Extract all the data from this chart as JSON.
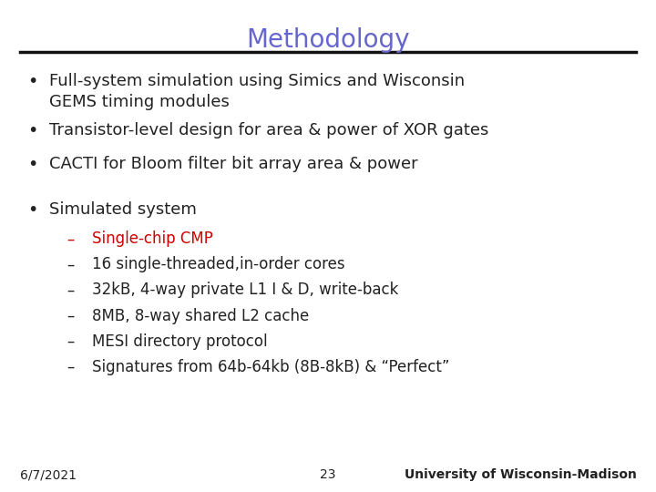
{
  "title": "Methodology",
  "title_color": "#6666cc",
  "title_fontsize": 20,
  "bg_color": "#ffffff",
  "bullet_points": [
    "Full-system simulation using Simics and Wisconsin\nGEMS timing modules",
    "Transistor-level design for area & power of XOR gates",
    "CACTI for Bloom filter bit array area & power"
  ],
  "bullet_color": "#222222",
  "bullet_fontsize": 13,
  "sub_header": "Simulated system",
  "sub_header_color": "#222222",
  "sub_header_fontsize": 13,
  "sub_items": [
    "Single-chip CMP",
    "16 single-threaded,in-order cores",
    "32kB, 4-way private L1 I & D, write-back",
    "8MB, 8-way shared L2 cache",
    "MESI directory protocol",
    "Signatures from 64b-64kb (8B-8kB) & “Perfect”"
  ],
  "sub_item_colors": [
    "#cc0000",
    "#222222",
    "#222222",
    "#222222",
    "#222222",
    "#222222"
  ],
  "sub_item_fontsize": 12,
  "footer_left": "6/7/2021",
  "footer_center": "23",
  "footer_right": "University of Wisconsin-Madison",
  "footer_fontsize": 10,
  "footer_color": "#222222"
}
